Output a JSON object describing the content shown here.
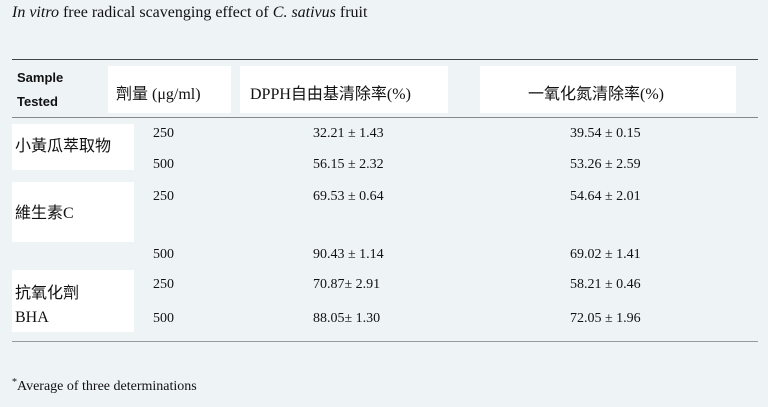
{
  "caption": {
    "italic_prefix": "In vitro",
    "text_mid": " free radical scavenging effect of ",
    "italic_species": "C. sativus",
    "text_end": " fruit"
  },
  "table": {
    "headers": {
      "sample_line1": "Sample",
      "sample_line2": "Tested",
      "dose": "劑量 (μg/ml)",
      "dpph": "DPPH自由基清除率(%)",
      "no": "一氧化氮清除率(%)"
    },
    "groups": [
      {
        "label_line1": "小黃瓜萃取物",
        "label_line2": "",
        "rows": [
          {
            "dose": "250",
            "dpph": "32.21 ± 1.43",
            "no": "39.54 ± 0.15"
          },
          {
            "dose": "500",
            "dpph": "56.15 ± 2.32",
            "no": "53.26 ± 2.59"
          }
        ]
      },
      {
        "label_line1": "維生素C",
        "label_line2": "",
        "rows": [
          {
            "dose": "250",
            "dpph": "69.53 ± 0.64",
            "no": "54.64 ± 2.01"
          },
          {
            "dose": "500",
            "dpph": "90.43 ± 1.14",
            "no": "69.02 ± 1.41"
          }
        ]
      },
      {
        "label_line1": "抗氧化劑",
        "label_line2": "BHA",
        "rows": [
          {
            "dose": "250",
            "dpph": "70.87± 2.91",
            "no": "58.21 ± 0.46"
          },
          {
            "dose": "500",
            "dpph": "88.05± 1.30",
            "no": "72.05 ± 1.96"
          }
        ]
      }
    ]
  },
  "footnote": {
    "marker": "*",
    "text": "Average of three determinations"
  }
}
